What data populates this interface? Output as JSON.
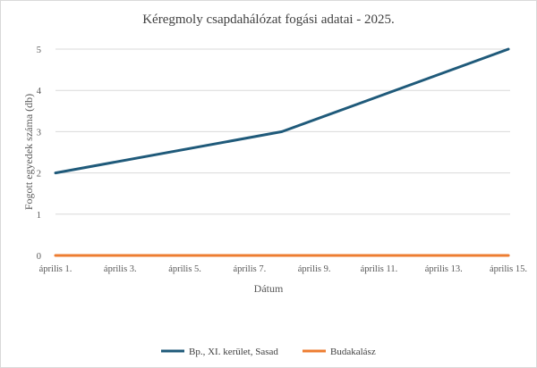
{
  "chart_data": {
    "type": "line",
    "title": "Kéregmoly csapdahálózat fogási adatai - 2025.",
    "xlabel": "Dátum",
    "ylabel": "Fogott egyedek száma (db)",
    "x": [
      "április 1.",
      "április 3.",
      "április 5.",
      "április 7.",
      "április 9.",
      "április 11.",
      "április 13.",
      "április 15."
    ],
    "x_range": [
      1,
      15
    ],
    "ylim": [
      0,
      5
    ],
    "yticks": [
      0,
      1,
      2,
      3,
      4,
      5
    ],
    "grid": true,
    "legend_position": "bottom",
    "series": [
      {
        "name": "Bp., XI. kerület, Sasad",
        "color": "#1f5a7a",
        "points": [
          {
            "day": 1,
            "value": 2
          },
          {
            "day": 8,
            "value": 3
          },
          {
            "day": 15,
            "value": 5
          }
        ]
      },
      {
        "name": "Budakalász",
        "color": "#ed7d31",
        "points": [
          {
            "day": 1,
            "value": 0
          },
          {
            "day": 15,
            "value": 0
          }
        ]
      }
    ]
  }
}
